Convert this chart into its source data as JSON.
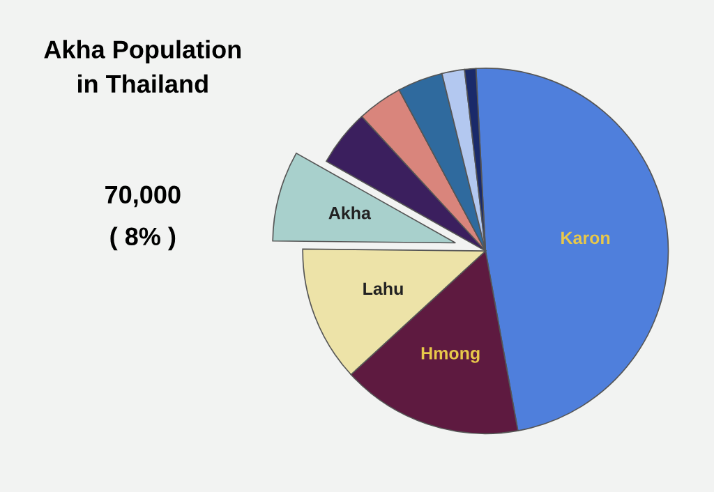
{
  "chart_data": {
    "type": "pie",
    "title": "Akha Population\nin Thailand",
    "categories": [
      "Karon",
      "Hmong",
      "Lahu",
      "Akha",
      null,
      null,
      null,
      null,
      null
    ],
    "values": [
      48,
      16,
      12,
      8,
      5,
      4,
      4,
      2,
      1
    ],
    "colors": [
      "#4f7fdc",
      "#5e1a40",
      "#ede3a8",
      "#a8d0cc",
      "#3b1f5e",
      "#d9857c",
      "#2f6a9e",
      "#b3c8f0",
      "#1a2a6a"
    ],
    "annotations": [
      "70,000",
      "( 8% )"
    ],
    "legend": false
  }
}
